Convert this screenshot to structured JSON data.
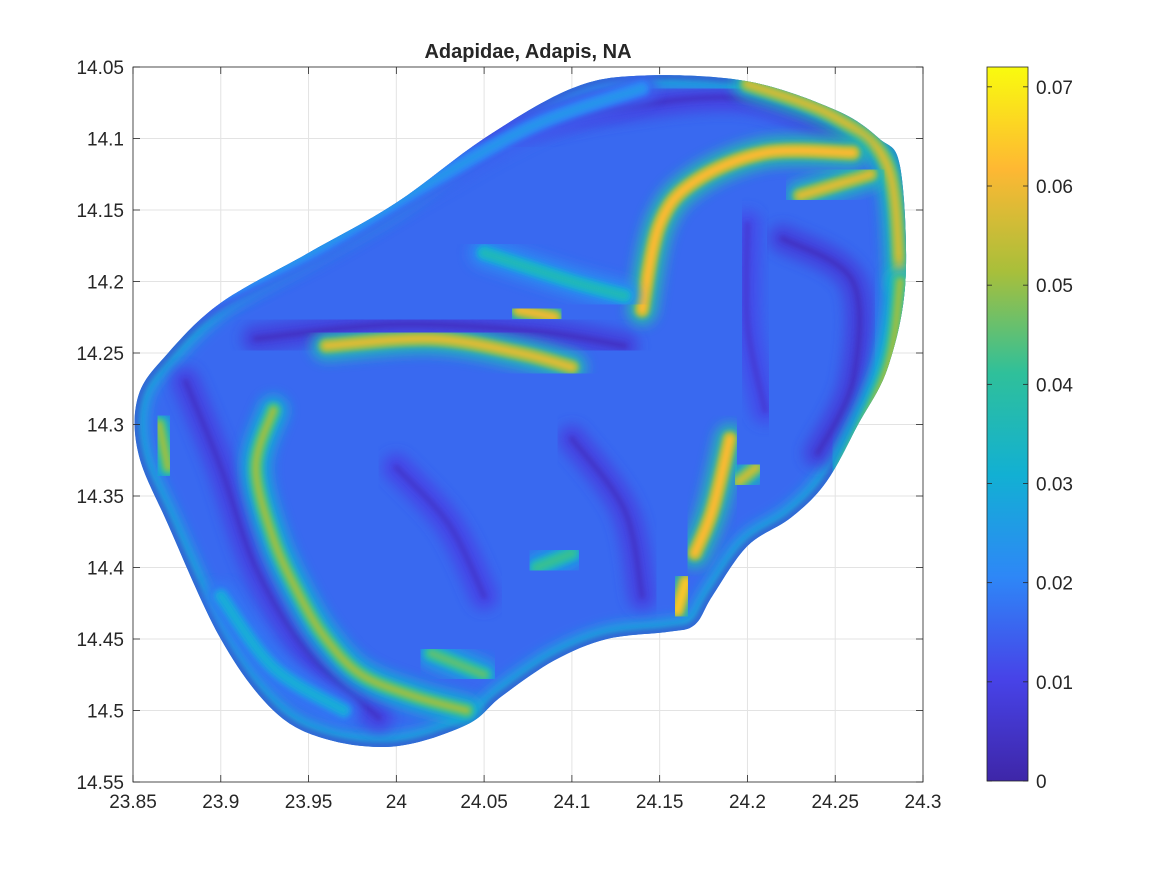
{
  "chart_data": {
    "type": "heatmap",
    "title": "Adapidae, Adapis, NA",
    "xlabel": "",
    "ylabel": "",
    "xlim": [
      23.85,
      24.3
    ],
    "ylim": [
      14.05,
      14.55
    ],
    "y_reversed": true,
    "grid": true,
    "x_ticks": [
      "23.85",
      "23.9",
      "23.95",
      "24",
      "24.05",
      "24.1",
      "24.15",
      "24.2",
      "24.25",
      "24.3"
    ],
    "x_tick_values": [
      23.85,
      23.9,
      23.95,
      24.0,
      24.05,
      24.1,
      24.15,
      24.2,
      24.25,
      24.3
    ],
    "y_ticks": [
      "14.05",
      "14.1",
      "14.15",
      "14.2",
      "14.25",
      "14.3",
      "14.35",
      "14.4",
      "14.45",
      "14.5",
      "14.55"
    ],
    "y_tick_values": [
      14.05,
      14.1,
      14.15,
      14.2,
      14.25,
      14.3,
      14.35,
      14.4,
      14.45,
      14.5,
      14.55
    ],
    "colorbar": {
      "colormap": "parula",
      "range": [
        0,
        0.072
      ],
      "ticks": [
        "0",
        "0.01",
        "0.02",
        "0.03",
        "0.04",
        "0.05",
        "0.06",
        "0.07"
      ],
      "tick_values": [
        0,
        0.01,
        0.02,
        0.03,
        0.04,
        0.05,
        0.06,
        0.07
      ],
      "stops": [
        "#3e26a8",
        "#4743e8",
        "#2e87f7",
        "#12b0d3",
        "#2fc09a",
        "#a9bf3a",
        "#feb833",
        "#f9fb0e"
      ]
    },
    "outline": [
      [
        24.14,
        14.056
      ],
      [
        24.2,
        14.06
      ],
      [
        24.25,
        14.08
      ],
      [
        24.275,
        14.1
      ],
      [
        24.287,
        14.12
      ],
      [
        24.29,
        14.2
      ],
      [
        24.28,
        14.26
      ],
      [
        24.263,
        14.3
      ],
      [
        24.245,
        14.34
      ],
      [
        24.225,
        14.365
      ],
      [
        24.2,
        14.385
      ],
      [
        24.18,
        14.42
      ],
      [
        24.17,
        14.44
      ],
      [
        24.155,
        14.445
      ],
      [
        24.12,
        14.45
      ],
      [
        24.09,
        14.465
      ],
      [
        24.06,
        14.49
      ],
      [
        24.04,
        14.51
      ],
      [
        24.0,
        14.525
      ],
      [
        23.96,
        14.52
      ],
      [
        23.93,
        14.5
      ],
      [
        23.9,
        14.45
      ],
      [
        23.87,
        14.37
      ],
      [
        23.853,
        14.32
      ],
      [
        23.853,
        14.28
      ],
      [
        23.87,
        14.25
      ],
      [
        23.9,
        14.215
      ],
      [
        23.95,
        14.18
      ],
      [
        24.0,
        14.145
      ],
      [
        24.05,
        14.1
      ],
      [
        24.1,
        14.065
      ]
    ],
    "background_value": 0.016,
    "features": [
      {
        "name": "upper-left margin ridge",
        "value": 0.024,
        "points": [
          [
            23.88,
            14.22
          ],
          [
            23.95,
            14.18
          ],
          [
            24.02,
            14.13
          ],
          [
            24.08,
            14.09
          ],
          [
            24.14,
            14.065
          ]
        ]
      },
      {
        "name": "upper-right margin ridge",
        "value": 0.056,
        "points": [
          [
            24.2,
            14.062
          ],
          [
            24.25,
            14.085
          ],
          [
            24.28,
            14.12
          ],
          [
            24.287,
            14.2
          ]
        ]
      },
      {
        "name": "right margin ridge",
        "value": 0.05,
        "points": [
          [
            24.287,
            14.2
          ],
          [
            24.28,
            14.26
          ],
          [
            24.255,
            14.33
          ]
        ]
      },
      {
        "name": "right horn",
        "value": 0.058,
        "points": [
          [
            24.23,
            14.14
          ],
          [
            24.27,
            14.125
          ]
        ]
      },
      {
        "name": "curved crest",
        "value": 0.062,
        "points": [
          [
            24.14,
            14.22
          ],
          [
            24.15,
            14.16
          ],
          [
            24.17,
            14.13
          ],
          [
            24.21,
            14.11
          ],
          [
            24.26,
            14.11
          ]
        ]
      },
      {
        "name": "central crest",
        "value": 0.058,
        "points": [
          [
            23.96,
            14.245
          ],
          [
            24.02,
            14.24
          ],
          [
            24.07,
            14.25
          ],
          [
            24.1,
            14.26
          ]
        ]
      },
      {
        "name": "central spot",
        "value": 0.06,
        "points": [
          [
            24.07,
            14.22
          ],
          [
            24.09,
            14.225
          ]
        ]
      },
      {
        "name": "left crest",
        "value": 0.05,
        "points": [
          [
            23.93,
            14.29
          ],
          [
            23.92,
            14.33
          ],
          [
            23.93,
            14.38
          ],
          [
            23.945,
            14.42
          ],
          [
            23.96,
            14.45
          ],
          [
            23.98,
            14.475
          ],
          [
            24.01,
            14.49
          ],
          [
            24.04,
            14.5
          ]
        ]
      },
      {
        "name": "lower-right crest",
        "value": 0.062,
        "points": [
          [
            24.17,
            14.39
          ],
          [
            24.18,
            14.36
          ],
          [
            24.19,
            14.31
          ]
        ]
      },
      {
        "name": "lower-right spot",
        "value": 0.064,
        "points": [
          [
            24.16,
            14.43
          ],
          [
            24.165,
            14.41
          ]
        ]
      },
      {
        "name": "right spot",
        "value": 0.055,
        "points": [
          [
            24.195,
            14.34
          ],
          [
            24.205,
            14.33
          ]
        ]
      },
      {
        "name": "left margin spot",
        "value": 0.05,
        "points": [
          [
            23.865,
            14.3
          ],
          [
            23.87,
            14.33
          ]
        ]
      },
      {
        "name": "lower spot",
        "value": 0.045,
        "points": [
          [
            24.02,
            14.46
          ],
          [
            24.05,
            14.475
          ]
        ]
      },
      {
        "name": "mid spot",
        "value": 0.042,
        "points": [
          [
            24.08,
            14.4
          ],
          [
            24.1,
            14.39
          ]
        ]
      },
      {
        "name": "upper center band",
        "value": 0.036,
        "points": [
          [
            24.05,
            14.18
          ],
          [
            24.1,
            14.2
          ],
          [
            24.13,
            14.21
          ]
        ]
      },
      {
        "name": "lower-left band",
        "value": 0.03,
        "points": [
          [
            23.9,
            14.42
          ],
          [
            23.93,
            14.47
          ],
          [
            23.97,
            14.5
          ]
        ]
      }
    ],
    "low_features": [
      {
        "name": "upper valley",
        "value": 0.004,
        "points": [
          [
            23.92,
            14.24
          ],
          [
            24.0,
            14.23
          ],
          [
            24.08,
            14.235
          ],
          [
            24.13,
            14.245
          ]
        ]
      },
      {
        "name": "upper-right valley",
        "value": 0.005,
        "points": [
          [
            24.05,
            14.1
          ],
          [
            24.12,
            14.08
          ],
          [
            24.2,
            14.072
          ],
          [
            24.26,
            14.1
          ]
        ]
      },
      {
        "name": "left valley",
        "value": 0.005,
        "points": [
          [
            23.88,
            14.27
          ],
          [
            23.9,
            14.33
          ],
          [
            23.92,
            14.4
          ],
          [
            23.95,
            14.46
          ],
          [
            23.99,
            14.505
          ]
        ]
      },
      {
        "name": "center basin",
        "value": 0.006,
        "points": [
          [
            24.0,
            14.33
          ],
          [
            24.03,
            14.37
          ],
          [
            24.05,
            14.42
          ]
        ]
      },
      {
        "name": "right basin",
        "value": 0.007,
        "points": [
          [
            24.2,
            14.16
          ],
          [
            24.2,
            14.23
          ],
          [
            24.21,
            14.29
          ]
        ]
      },
      {
        "name": "lower-right valley",
        "value": 0.005,
        "points": [
          [
            24.1,
            14.31
          ],
          [
            24.13,
            14.36
          ],
          [
            24.14,
            14.42
          ]
        ]
      },
      {
        "name": "ridge valley",
        "value": 0.004,
        "points": [
          [
            24.22,
            14.17
          ],
          [
            24.26,
            14.2
          ],
          [
            24.26,
            14.27
          ],
          [
            24.24,
            14.32
          ]
        ]
      }
    ]
  }
}
